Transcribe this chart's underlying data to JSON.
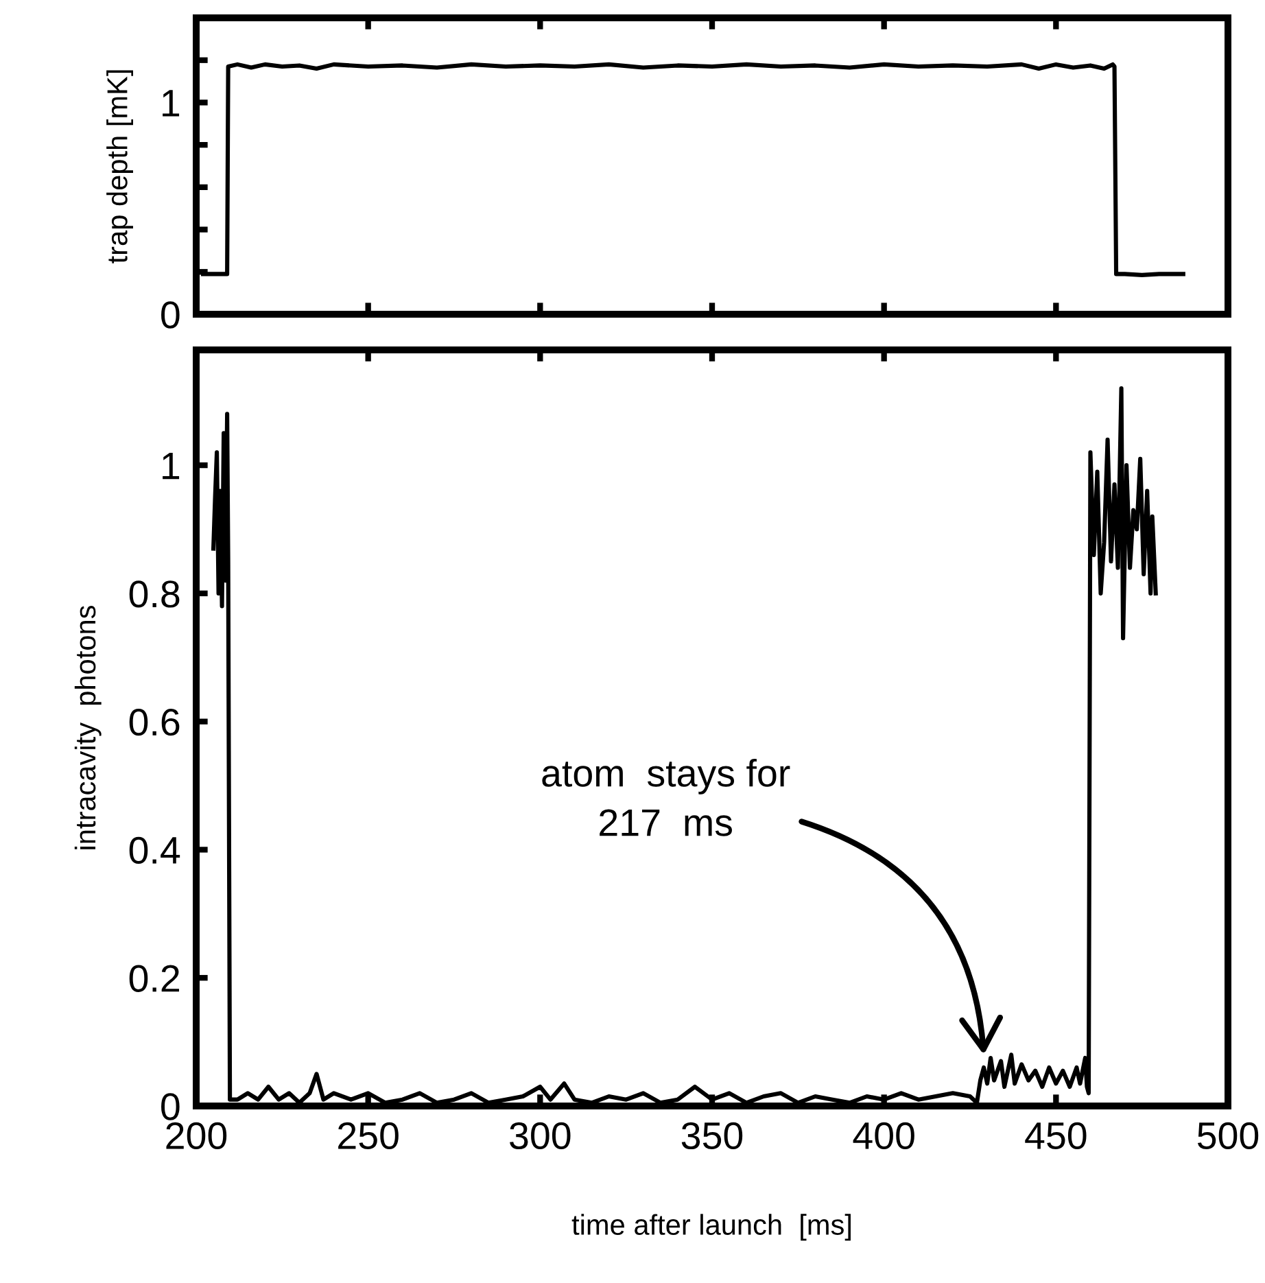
{
  "chart_data": [
    {
      "type": "line",
      "ylabel": "trap depth [mK]",
      "xlim": [
        200,
        500
      ],
      "xticks": [
        200,
        250,
        300,
        350,
        400,
        450,
        500
      ],
      "ylim": [
        0,
        1.4
      ],
      "yticks": [
        0,
        {
          "value": 0.2,
          "label": null
        },
        {
          "value": 0.4,
          "label": null
        },
        {
          "value": 0.6,
          "label": null
        },
        {
          "value": 0.8,
          "label": null
        },
        1,
        {
          "value": 1.2,
          "label": null
        }
      ],
      "tick_labels": "y",
      "grid": false,
      "legend": false,
      "series": [
        {
          "color": "#000000",
          "x": [
            202,
            205,
            209,
            209.3,
            212,
            216,
            220,
            225,
            230,
            235,
            240,
            250,
            260,
            270,
            280,
            290,
            300,
            310,
            320,
            330,
            340,
            350,
            360,
            370,
            380,
            390,
            400,
            410,
            420,
            430,
            440,
            445,
            450,
            455,
            460,
            464,
            466.5,
            467,
            467.5,
            470,
            475,
            480,
            487
          ],
          "values": [
            0.19,
            0.19,
            0.19,
            1.17,
            1.18,
            1.165,
            1.18,
            1.17,
            1.175,
            1.16,
            1.18,
            1.17,
            1.175,
            1.165,
            1.18,
            1.17,
            1.175,
            1.17,
            1.18,
            1.165,
            1.175,
            1.17,
            1.18,
            1.17,
            1.175,
            1.165,
            1.18,
            1.17,
            1.175,
            1.17,
            1.18,
            1.16,
            1.18,
            1.165,
            1.175,
            1.16,
            1.18,
            1.17,
            0.19,
            0.19,
            0.185,
            0.19,
            0.19
          ]
        }
      ]
    },
    {
      "type": "line",
      "xlabel": "time after launch  [ms]",
      "ylabel": "intracavity  photons",
      "xlim": [
        200,
        500
      ],
      "xticks": [
        200,
        250,
        300,
        350,
        400,
        450,
        500
      ],
      "ylim": [
        0,
        1.18
      ],
      "yticks": [
        0,
        0.2,
        0.4,
        0.6,
        0.8,
        1
      ],
      "grid": false,
      "legend": false,
      "annotations": [
        {
          "text": "atom  stays for\n217  ms",
          "x": 429,
          "y": 0.08
        }
      ],
      "series": [
        {
          "color": "#000000",
          "x": [
            205,
            205.5,
            206,
            206.5,
            207,
            207.5,
            208,
            208.5,
            209,
            209.3,
            209.8,
            212,
            215,
            218,
            221,
            224,
            227,
            230,
            233,
            235,
            237,
            240,
            245,
            250,
            255,
            260,
            265,
            270,
            275,
            280,
            285,
            290,
            295,
            300,
            303,
            307,
            310,
            315,
            320,
            325,
            330,
            335,
            340,
            345,
            350,
            355,
            360,
            365,
            370,
            375,
            380,
            385,
            390,
            395,
            400,
            405,
            410,
            415,
            420,
            425,
            427,
            428,
            429,
            430,
            431,
            432,
            434,
            435,
            437,
            438,
            440,
            442,
            444,
            446,
            448,
            450,
            452,
            454,
            456,
            457,
            458.5,
            459,
            459.5,
            460,
            461,
            462,
            463,
            464,
            465,
            466,
            467,
            468,
            469,
            469.5,
            470.5,
            471.5,
            472.5,
            473.5,
            474.5,
            475.5,
            476.5,
            477.5,
            478,
            479
          ],
          "values": [
            0.87,
            0.95,
            1.02,
            0.8,
            0.96,
            0.78,
            1.05,
            0.82,
            1.08,
            0.85,
            0.01,
            0.01,
            0.02,
            0.01,
            0.03,
            0.01,
            0.02,
            0.005,
            0.02,
            0.05,
            0.01,
            0.02,
            0.01,
            0.02,
            0.005,
            0.01,
            0.02,
            0.005,
            0.01,
            0.02,
            0.005,
            0.01,
            0.015,
            0.03,
            0.01,
            0.035,
            0.01,
            0.005,
            0.015,
            0.01,
            0.02,
            0.005,
            0.01,
            0.03,
            0.01,
            0.02,
            0.005,
            0.015,
            0.02,
            0.005,
            0.015,
            0.01,
            0.005,
            0.015,
            0.01,
            0.02,
            0.01,
            0.015,
            0.02,
            0.015,
            0.005,
            0.04,
            0.06,
            0.035,
            0.075,
            0.04,
            0.07,
            0.03,
            0.08,
            0.035,
            0.065,
            0.04,
            0.055,
            0.03,
            0.06,
            0.035,
            0.055,
            0.03,
            0.06,
            0.035,
            0.075,
            0.03,
            0.02,
            1.02,
            0.86,
            0.99,
            0.8,
            0.88,
            1.04,
            0.85,
            0.97,
            0.84,
            1.12,
            0.73,
            1.0,
            0.84,
            0.93,
            0.9,
            1.01,
            0.83,
            0.96,
            0.8,
            0.92,
            0.8
          ]
        }
      ]
    }
  ]
}
